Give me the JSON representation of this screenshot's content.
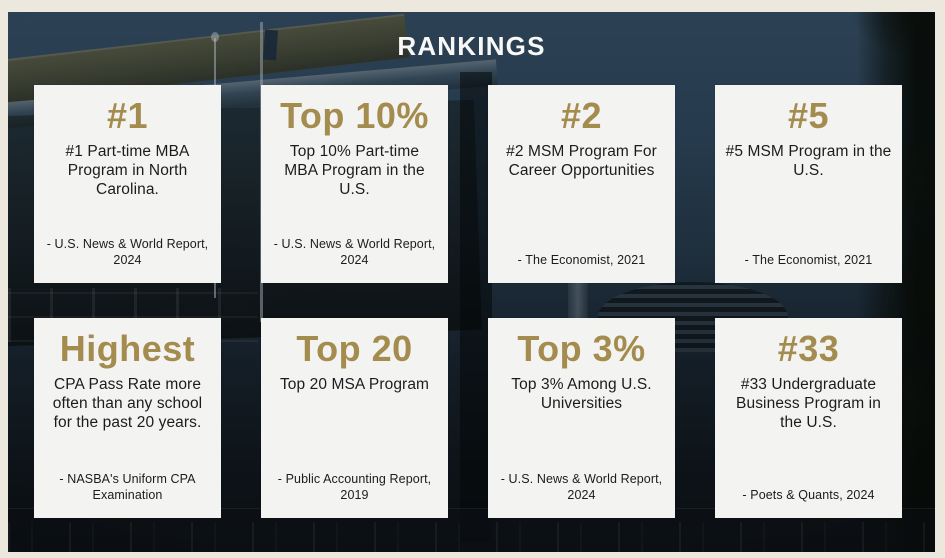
{
  "theme": {
    "accent_gold": "#a48c4e",
    "card_bg": "#f3f3f1",
    "page_border": "#ece8de",
    "photo_sky": "#253a4c",
    "text_dark": "#1c1c1c",
    "title_color": "#f8f8f6"
  },
  "slide": {
    "title": "RANKINGS",
    "cards": [
      {
        "headline": "#1",
        "description": "#1 Part-time MBA Program in North Carolina.",
        "source": "- U.S. News & World Report, 2024"
      },
      {
        "headline": "Top 10%",
        "description": "Top 10% Part-time MBA Program in the U.S.",
        "source": "- U.S. News & World Report, 2024"
      },
      {
        "headline": "#2",
        "description": "#2 MSM Program For Career Opportunities",
        "source": "- The Economist, 2021"
      },
      {
        "headline": "#5",
        "description": "#5 MSM Program in the U.S.",
        "source": "- The Economist, 2021"
      },
      {
        "headline": "Highest",
        "description": "CPA Pass Rate more often than any school for the past 20 years.",
        "source": "- NASBA's Uniform CPA Examination"
      },
      {
        "headline": "Top 20",
        "description": "Top 20 MSA Program",
        "source": "- Public Accounting Report, 2019"
      },
      {
        "headline": "Top 3%",
        "description": "Top 3% Among U.S. Universities",
        "source": "- U.S. News & World Report, 2024"
      },
      {
        "headline": "#33",
        "description": "#33 Undergraduate Business Program in the U.S.",
        "source": "- Poets & Quants, 2024"
      }
    ]
  }
}
